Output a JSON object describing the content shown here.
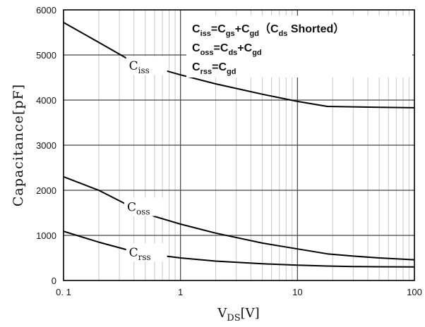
{
  "chart_data": {
    "type": "line",
    "x_scale": "log",
    "y_scale": "linear",
    "xlim": [
      0.1,
      100
    ],
    "ylim": [
      0,
      6000
    ],
    "x_ticks": [
      {
        "value": 0.1,
        "label": "0. 1"
      },
      {
        "value": 1,
        "label": "1"
      },
      {
        "value": 10,
        "label": "10"
      },
      {
        "value": 100,
        "label": "100"
      }
    ],
    "y_ticks": [
      {
        "value": 0,
        "label": "0"
      },
      {
        "value": 1000,
        "label": "1000"
      },
      {
        "value": 2000,
        "label": "2000"
      },
      {
        "value": 3000,
        "label": "3000"
      },
      {
        "value": 4000,
        "label": "4000"
      },
      {
        "value": 5000,
        "label": "5000"
      },
      {
        "value": 6000,
        "label": "6000"
      }
    ],
    "xlabel": {
      "main": "V",
      "sub": "DS",
      "unit": "[V]"
    },
    "ylabel": "Capacitance[pF]",
    "grid": true,
    "series": [
      {
        "name": {
          "main": "C",
          "sub": "iss"
        },
        "color": "#000000",
        "x": [
          0.1,
          0.2,
          0.35,
          0.6,
          1,
          2,
          5,
          10,
          18,
          30,
          50,
          100
        ],
        "y": [
          5720,
          5280,
          4920,
          4720,
          4560,
          4360,
          4130,
          3970,
          3860,
          3850,
          3840,
          3830
        ]
      },
      {
        "name": {
          "main": "C",
          "sub": "oss"
        },
        "color": "#000000",
        "x": [
          0.1,
          0.2,
          0.35,
          0.6,
          1,
          2,
          5,
          10,
          18,
          30,
          50,
          100
        ],
        "y": [
          2300,
          2000,
          1680,
          1420,
          1250,
          1050,
          830,
          700,
          590,
          540,
          500,
          460
        ]
      },
      {
        "name": {
          "main": "C",
          "sub": "rss"
        },
        "color": "#000000",
        "x": [
          0.1,
          0.2,
          0.35,
          0.6,
          1,
          2,
          5,
          10,
          18,
          30,
          50,
          100
        ],
        "y": [
          1090,
          850,
          680,
          570,
          500,
          430,
          370,
          340,
          320,
          310,
          305,
          300
        ]
      }
    ],
    "annotations": [
      {
        "name": "formula-ciss",
        "parts": [
          [
            "C",
            ""
          ],
          [
            "iss",
            "sub"
          ],
          [
            "=C",
            ""
          ],
          [
            "gs",
            "sub"
          ],
          [
            "+C",
            ""
          ],
          [
            "gd",
            "sub"
          ],
          [
            "（C",
            ""
          ],
          [
            "ds",
            "sub"
          ],
          [
            " Shorted）",
            ""
          ]
        ]
      },
      {
        "name": "formula-coss",
        "parts": [
          [
            "C",
            ""
          ],
          [
            "oss",
            "sub"
          ],
          [
            "=C",
            ""
          ],
          [
            "ds",
            "sub"
          ],
          [
            "+C",
            ""
          ],
          [
            "gd",
            "sub"
          ]
        ]
      },
      {
        "name": "formula-crss",
        "parts": [
          [
            "C",
            ""
          ],
          [
            "rss",
            "sub"
          ],
          [
            "=C",
            ""
          ],
          [
            "gd",
            "sub"
          ]
        ]
      }
    ]
  }
}
